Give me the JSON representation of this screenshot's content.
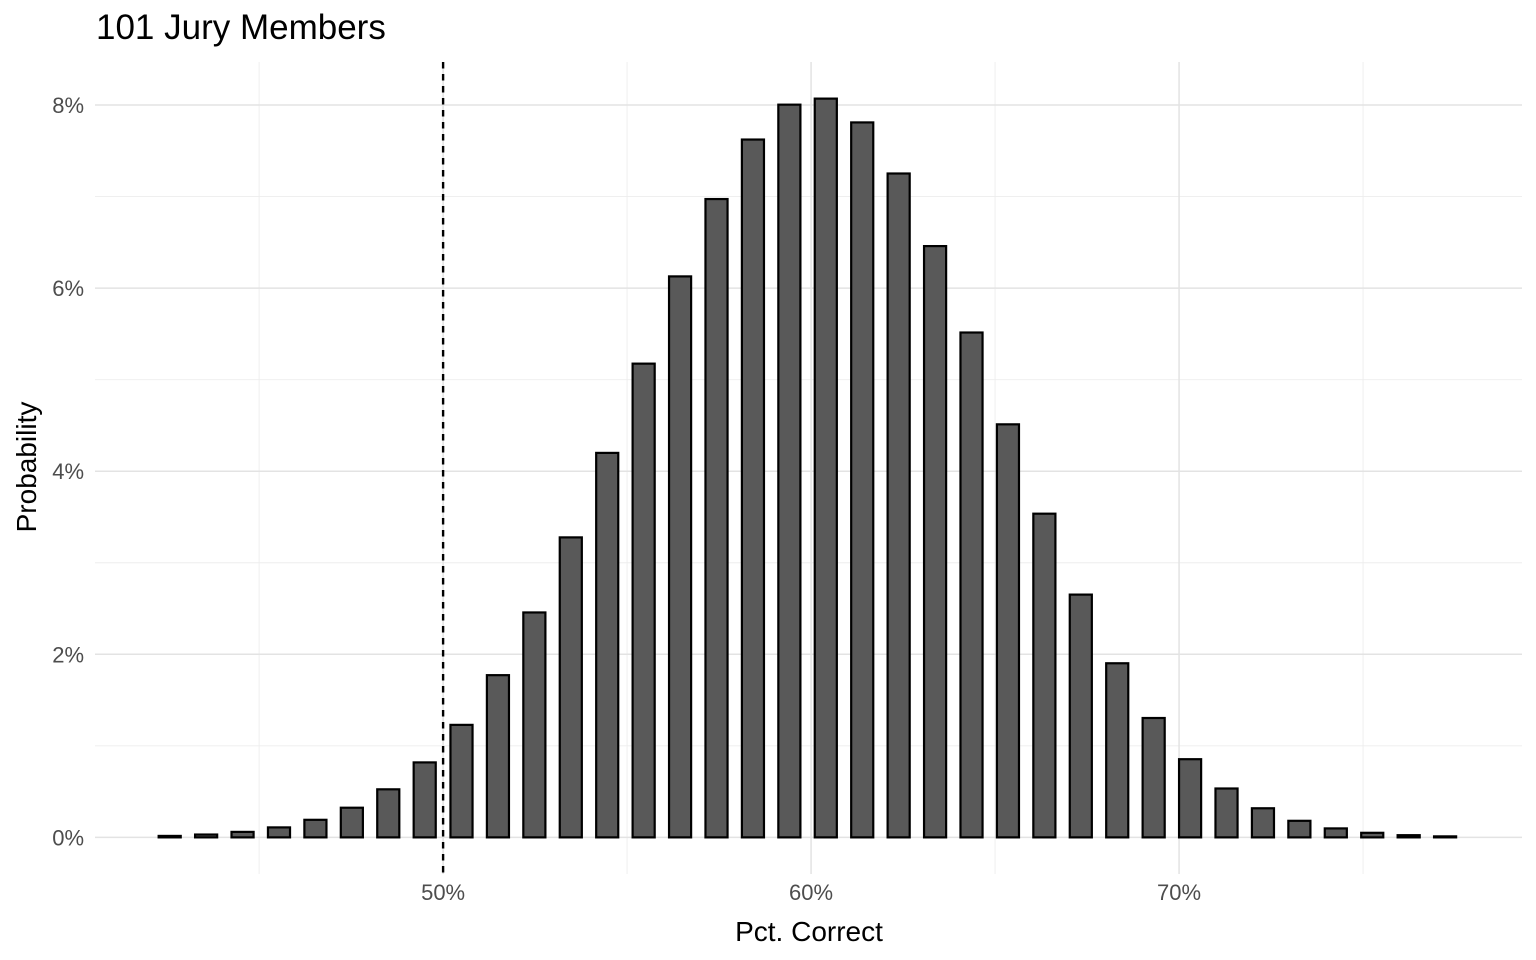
{
  "chart_data": {
    "type": "bar",
    "title": "101 Jury Members",
    "xlabel": "Pct. Correct",
    "ylabel": "Probability",
    "legend": "none",
    "grid": true,
    "xlim": [
      40.54,
      79.32
    ],
    "ylim": [
      -0.4,
      8.47
    ],
    "x_ticks": [
      {
        "value": 50,
        "label": "50%"
      },
      {
        "value": 60,
        "label": "60%"
      },
      {
        "value": 70,
        "label": "70%"
      }
    ],
    "y_ticks": [
      {
        "value": 0,
        "label": "0%"
      },
      {
        "value": 2,
        "label": "2%"
      },
      {
        "value": 4,
        "label": "4%"
      },
      {
        "value": 6,
        "label": "6%"
      },
      {
        "value": 8,
        "label": "8%"
      }
    ],
    "x_minor_gridlines": [
      45,
      55,
      65,
      75
    ],
    "y_minor_gridlines": [
      1,
      3,
      5,
      7
    ],
    "vline": {
      "x": 50,
      "style": "dashed"
    },
    "bar_width_x_units": 0.6,
    "bars": [
      {
        "x": 42.57,
        "y": 0.016
      },
      {
        "x": 43.56,
        "y": 0.031
      },
      {
        "x": 44.55,
        "y": 0.06
      },
      {
        "x": 45.54,
        "y": 0.109
      },
      {
        "x": 46.53,
        "y": 0.192
      },
      {
        "x": 47.52,
        "y": 0.324
      },
      {
        "x": 48.51,
        "y": 0.525
      },
      {
        "x": 49.5,
        "y": 0.819
      },
      {
        "x": 50.5,
        "y": 1.229
      },
      {
        "x": 51.49,
        "y": 1.772
      },
      {
        "x": 52.48,
        "y": 2.457
      },
      {
        "x": 53.47,
        "y": 3.277
      },
      {
        "x": 54.46,
        "y": 4.2
      },
      {
        "x": 55.45,
        "y": 5.175
      },
      {
        "x": 56.44,
        "y": 6.128
      },
      {
        "x": 57.43,
        "y": 6.973
      },
      {
        "x": 58.42,
        "y": 7.623
      },
      {
        "x": 59.41,
        "y": 8.004
      },
      {
        "x": 60.4,
        "y": 8.07
      },
      {
        "x": 61.39,
        "y": 7.81
      },
      {
        "x": 62.38,
        "y": 7.252
      },
      {
        "x": 63.37,
        "y": 6.459
      },
      {
        "x": 64.36,
        "y": 5.515
      },
      {
        "x": 65.35,
        "y": 4.512
      },
      {
        "x": 66.34,
        "y": 3.536
      },
      {
        "x": 67.33,
        "y": 2.652
      },
      {
        "x": 68.32,
        "y": 1.902
      },
      {
        "x": 69.31,
        "y": 1.304
      },
      {
        "x": 70.3,
        "y": 0.854
      },
      {
        "x": 71.29,
        "y": 0.534
      },
      {
        "x": 72.28,
        "y": 0.318
      },
      {
        "x": 73.27,
        "y": 0.181
      },
      {
        "x": 74.26,
        "y": 0.098
      },
      {
        "x": 75.25,
        "y": 0.05
      },
      {
        "x": 76.24,
        "y": 0.024
      },
      {
        "x": 77.23,
        "y": 0.011
      }
    ],
    "colors": {
      "background": "#FFFFFF",
      "bar_fill": "#595959",
      "bar_stroke": "#000000",
      "grid_major": "#E3E3E3",
      "grid_minor": "#EDEDED",
      "tick_text": "#4D4D4D",
      "title_text": "#000000",
      "axis_title_text": "#000000",
      "vline": "#000000"
    }
  }
}
